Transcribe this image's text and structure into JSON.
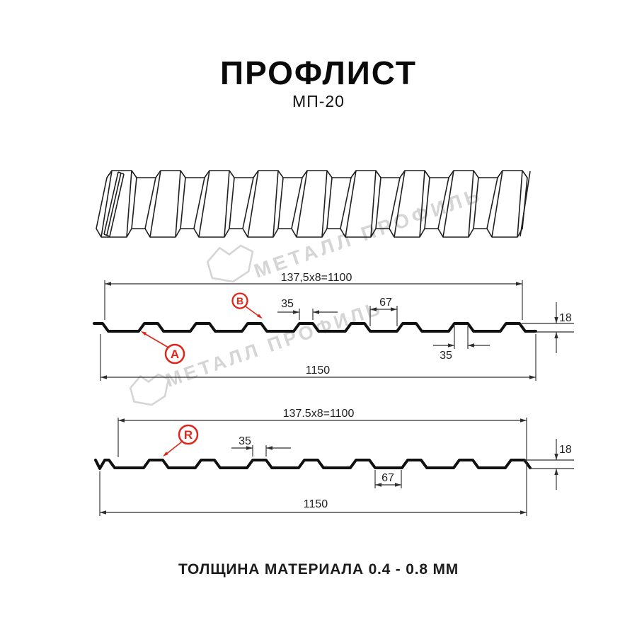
{
  "title": "ПРОФЛИСТ",
  "subtitle": "МП-20",
  "note": "ТОЛЩИНА МАТЕРИАЛА 0.4 - 0.8 ММ",
  "watermark": {
    "text": "МЕТАЛЛ ПРОФИЛЬ",
    "color": "#d5d5d5"
  },
  "colors": {
    "line": "#1f1f1f",
    "profile": "#101010",
    "dim": "#2e2e2e",
    "red": "#e0261b"
  },
  "diagram1": {
    "width_useful": "137,5x8=1100",
    "width_total": "1150",
    "rib_top_width": "35",
    "rib_top_width_bottom_callout": "35",
    "valley_width": "67",
    "profile_height": "18",
    "label_a": "A",
    "label_b": "B"
  },
  "diagram2": {
    "width_useful": "137.5x8=1100",
    "width_total": "1150",
    "rib_top_width": "35",
    "valley_width": "67",
    "profile_height": "18",
    "label_r": "R"
  }
}
